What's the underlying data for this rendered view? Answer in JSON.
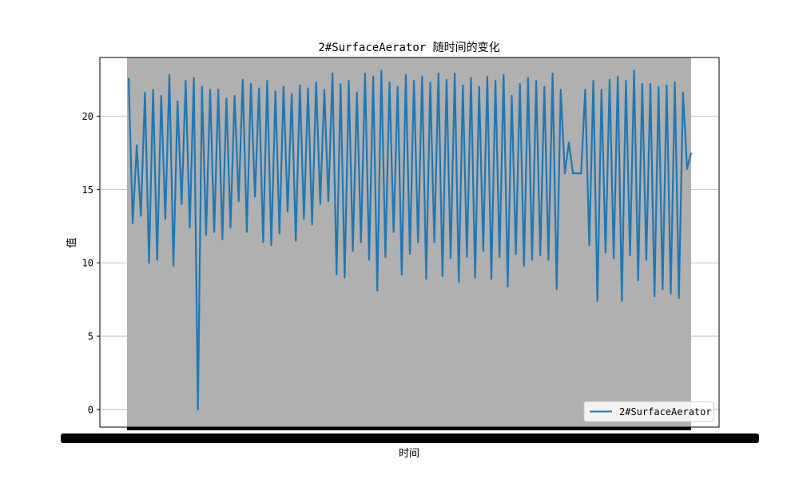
{
  "chart_data": {
    "type": "line",
    "title": "2#SurfaceAerator 随时间的变化",
    "xlabel": "时间",
    "ylabel": "值",
    "ylim": [
      -1.2,
      24.0
    ],
    "yticks": [
      0,
      5,
      10,
      15,
      20
    ],
    "grid": true,
    "legend_position": "bottom-right",
    "x_tick_labels_note": "overlapping illegible tick labels",
    "series": [
      {
        "name": "2#SurfaceAerator",
        "color": "#1f77b4",
        "values": [
          22.6,
          12.7,
          18.0,
          13.2,
          21.6,
          10.0,
          21.8,
          10.2,
          21.4,
          13.0,
          22.8,
          9.8,
          21.0,
          14.0,
          22.4,
          12.4,
          22.6,
          0.0,
          22.0,
          11.9,
          21.8,
          12.1,
          21.8,
          11.6,
          21.2,
          12.4,
          21.4,
          14.2,
          22.5,
          12.1,
          22.2,
          14.5,
          21.9,
          11.4,
          22.4,
          11.2,
          21.7,
          12.0,
          22.0,
          13.5,
          21.5,
          11.5,
          22.1,
          13.0,
          21.9,
          12.6,
          22.3,
          14.0,
          21.8,
          14.2,
          22.9,
          9.2,
          22.2,
          9.0,
          22.4,
          10.8,
          21.6,
          11.4,
          22.9,
          10.2,
          22.7,
          8.1,
          23.1,
          10.4,
          22.3,
          12.1,
          22.0,
          9.2,
          22.8,
          10.6,
          22.4,
          11.4,
          22.7,
          8.9,
          22.3,
          11.4,
          22.9,
          9.1,
          22.5,
          10.3,
          22.9,
          8.7,
          22.1,
          10.4,
          22.6,
          9.0,
          22.0,
          10.8,
          22.7,
          8.9,
          22.4,
          10.4,
          22.8,
          8.4,
          21.4,
          10.6,
          22.2,
          9.8,
          22.6,
          10.2,
          22.4,
          10.5,
          22.0,
          10.2,
          22.9,
          8.2,
          21.8,
          16.1,
          18.2,
          16.1,
          16.1,
          16.1,
          21.8,
          11.2,
          22.4,
          7.4,
          21.8,
          10.7,
          22.5,
          10.3,
          22.7,
          7.4,
          22.4,
          10.5,
          23.1,
          8.8,
          22.2,
          10.2,
          22.2,
          7.7,
          22.0,
          8.2,
          22.1,
          7.9,
          22.3,
          7.6,
          21.6,
          16.4,
          17.5
        ]
      }
    ]
  }
}
